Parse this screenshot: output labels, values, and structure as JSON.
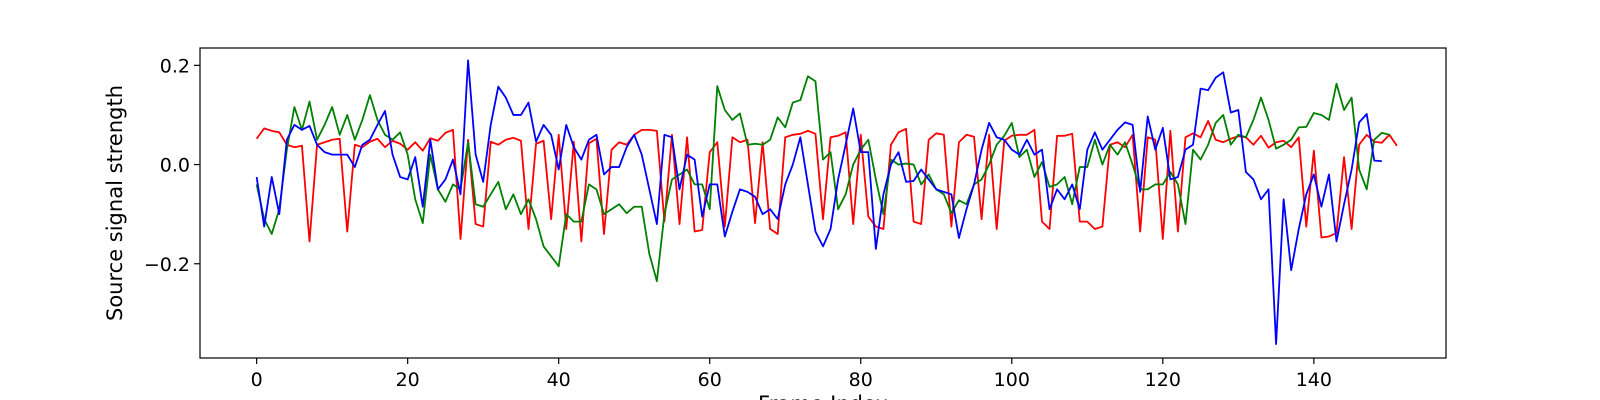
{
  "chart_data": {
    "type": "line",
    "title": "",
    "xlabel": "Frame Index",
    "ylabel": "Source signal strength",
    "xlim": [
      -7.5,
      157.5
    ],
    "ylim": [
      -0.39,
      0.235
    ],
    "xticks": [
      0,
      20,
      40,
      60,
      80,
      100,
      120,
      140
    ],
    "xtick_labels": [
      "0",
      "20",
      "40",
      "60",
      "80",
      "100",
      "120",
      "140"
    ],
    "yticks": [
      0.2,
      0.0,
      -0.2
    ],
    "ytick_labels": [
      "0.2",
      "0.0",
      "−0.2"
    ],
    "grid": false,
    "legend": "none",
    "series": [
      {
        "color": "#ff0000",
        "values": [
          0.052,
          0.073,
          0.068,
          0.065,
          0.04,
          0.035,
          0.038,
          -0.155,
          0.04,
          0.045,
          0.05,
          0.052,
          -0.135,
          0.04,
          0.035,
          0.046,
          0.052,
          0.035,
          0.048,
          0.042,
          0.03,
          0.045,
          0.028,
          0.053,
          0.048,
          0.064,
          0.07,
          -0.15,
          0.05,
          -0.12,
          -0.125,
          0.046,
          0.04,
          0.05,
          0.054,
          0.048,
          -0.13,
          0.042,
          0.048,
          -0.11,
          0.06,
          -0.13,
          0.046,
          -0.155,
          0.043,
          0.052,
          -0.14,
          0.03,
          0.045,
          0.04,
          0.06,
          0.07,
          0.07,
          0.068,
          -0.115,
          0.06,
          -0.12,
          0.055,
          -0.135,
          -0.132,
          0.025,
          0.045,
          -0.125,
          0.055,
          0.045,
          0.05,
          -0.118,
          0.045,
          -0.13,
          -0.14,
          0.055,
          0.06,
          0.062,
          0.068,
          0.062,
          -0.11,
          0.055,
          0.058,
          0.065,
          -0.12,
          0.06,
          -0.105,
          -0.125,
          -0.13,
          0.04,
          0.065,
          0.072,
          -0.115,
          -0.12,
          0.05,
          0.063,
          0.06,
          -0.125,
          0.045,
          0.06,
          0.056,
          -0.11,
          0.06,
          -0.13,
          0.048,
          0.058,
          0.06,
          0.06,
          0.07,
          -0.115,
          -0.13,
          0.058,
          0.058,
          0.062,
          -0.115,
          -0.115,
          -0.13,
          -0.125,
          0.04,
          0.045,
          0.035,
          0.06,
          -0.135,
          0.055,
          0.05,
          -0.15,
          0.068,
          -0.135,
          0.055,
          0.063,
          0.055,
          0.088,
          0.05,
          0.045,
          0.052,
          0.057,
          0.055,
          0.04,
          0.058,
          0.034,
          0.045,
          0.048,
          0.035,
          0.055,
          -0.125,
          0.028,
          -0.147,
          -0.145,
          -0.138,
          0.015,
          -0.13,
          0.04,
          0.06,
          0.046,
          0.044,
          0.06,
          0.038
        ]
      },
      {
        "color": "#008000",
        "values": [
          -0.04,
          -0.11,
          -0.14,
          -0.09,
          0.03,
          0.116,
          0.07,
          0.127,
          0.05,
          0.08,
          0.116,
          0.06,
          0.1,
          0.05,
          0.09,
          0.14,
          0.09,
          0.06,
          0.05,
          0.065,
          0.02,
          -0.07,
          -0.118,
          0.02,
          -0.05,
          -0.075,
          -0.04,
          -0.05,
          0.045,
          -0.08,
          -0.085,
          -0.06,
          -0.035,
          -0.09,
          -0.06,
          -0.1,
          -0.07,
          -0.11,
          -0.165,
          -0.185,
          -0.205,
          -0.1,
          -0.115,
          -0.115,
          -0.04,
          -0.05,
          -0.1,
          -0.09,
          -0.08,
          -0.098,
          -0.085,
          -0.085,
          -0.18,
          -0.235,
          -0.1,
          -0.03,
          -0.02,
          -0.01,
          -0.04,
          -0.04,
          -0.09,
          0.158,
          0.11,
          0.09,
          0.103,
          0.04,
          0.042,
          0.04,
          0.05,
          0.095,
          0.075,
          0.125,
          0.13,
          0.178,
          0.168,
          0.01,
          0.025,
          -0.09,
          -0.06,
          0.0,
          0.03,
          0.05,
          -0.03,
          -0.1,
          0.01,
          0.0,
          0.002,
          0.0,
          -0.04,
          -0.02,
          -0.05,
          -0.06,
          -0.098,
          -0.072,
          -0.08,
          -0.04,
          -0.03,
          0.0,
          0.04,
          0.058,
          0.084,
          0.015,
          0.03,
          -0.025,
          0.005,
          -0.045,
          -0.04,
          -0.025,
          -0.08,
          -0.005,
          -0.005,
          0.05,
          0.0,
          0.04,
          0.02,
          0.045,
          0.0,
          -0.05,
          -0.05,
          -0.04,
          -0.04,
          -0.015,
          -0.04,
          -0.12,
          0.03,
          0.01,
          0.04,
          0.084,
          0.1,
          0.04,
          0.06,
          0.055,
          0.09,
          0.135,
          0.09,
          0.032,
          0.04,
          0.05,
          0.075,
          0.076,
          0.104,
          0.1,
          0.09,
          0.163,
          0.11,
          0.135,
          -0.01,
          -0.05,
          0.05,
          0.064,
          0.06
        ]
      },
      {
        "color": "#0000ff",
        "values": [
          -0.025,
          -0.125,
          -0.025,
          -0.1,
          0.05,
          0.08,
          0.07,
          0.078,
          0.04,
          0.025,
          0.02,
          0.02,
          0.02,
          -0.005,
          0.04,
          0.05,
          0.08,
          0.108,
          0.02,
          -0.025,
          -0.03,
          0.015,
          -0.085,
          0.05,
          -0.05,
          -0.03,
          0.01,
          -0.06,
          0.21,
          0.02,
          -0.035,
          0.08,
          0.157,
          0.135,
          0.1,
          0.1,
          0.125,
          0.046,
          0.08,
          0.06,
          -0.01,
          0.08,
          0.035,
          0.01,
          0.05,
          0.06,
          -0.02,
          -0.005,
          -0.005,
          0.035,
          0.06,
          0.02,
          -0.05,
          -0.12,
          0.06,
          0.055,
          -0.05,
          0.02,
          0.01,
          -0.105,
          -0.04,
          -0.04,
          -0.145,
          -0.095,
          -0.05,
          -0.055,
          -0.065,
          -0.1,
          -0.09,
          -0.11,
          -0.04,
          0.0,
          0.055,
          -0.04,
          -0.135,
          -0.165,
          -0.13,
          -0.03,
          0.04,
          0.113,
          0.025,
          0.025,
          -0.17,
          -0.06,
          0.0,
          0.025,
          -0.035,
          -0.033,
          -0.01,
          -0.03,
          -0.05,
          -0.055,
          -0.06,
          -0.148,
          -0.09,
          -0.04,
          0.03,
          0.084,
          0.055,
          0.05,
          0.03,
          0.02,
          0.05,
          0.02,
          0.03,
          -0.09,
          -0.05,
          -0.07,
          -0.04,
          -0.09,
          0.03,
          0.065,
          0.03,
          0.05,
          0.07,
          0.085,
          0.08,
          -0.055,
          0.097,
          0.03,
          0.074,
          -0.03,
          -0.025,
          0.03,
          0.04,
          0.153,
          0.15,
          0.175,
          0.186,
          0.105,
          0.11,
          -0.015,
          -0.03,
          -0.07,
          -0.05,
          -0.362,
          -0.07,
          -0.213,
          -0.13,
          -0.06,
          -0.02,
          -0.085,
          -0.02,
          -0.155,
          -0.08,
          -0.01,
          0.085,
          0.102,
          0.008,
          0.007
        ]
      }
    ]
  }
}
